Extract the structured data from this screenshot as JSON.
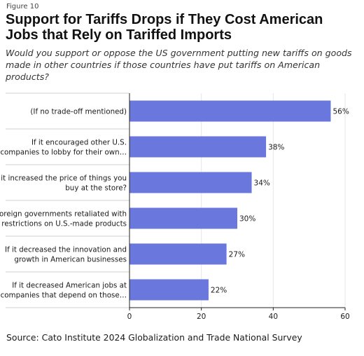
{
  "figure_label": "Figure 10",
  "title": "Support for Tariffs Drops if They Cost American Jobs that Rely on Tariffed Imports",
  "subtitle": "Would you support or oppose the US government putting new tariffs on goods made in other countries if those countries have put tariffs on American products?",
  "source": "Source: Cato Institute 2024 Globalization and Trade National Survey",
  "colors": {
    "bar": "#6a78de",
    "grid": "#e6e6e6",
    "axis": "#222222"
  },
  "chart_data": {
    "type": "bar",
    "orientation": "horizontal",
    "categories": [
      [
        "(If no trade-off mentioned)"
      ],
      [
        "If it encouraged other U.S.",
        "companies to lobby for their own…"
      ],
      [
        "If it increased the price of things you",
        "buy at the store?"
      ],
      [
        "If foreign governments retaliated with",
        "restrictions on U.S.-made products"
      ],
      [
        "If it decreased the innovation and",
        "growth in American businesses"
      ],
      [
        "If it decreased American jobs at",
        "companies that depend on those…"
      ]
    ],
    "values": [
      56,
      38,
      34,
      30,
      27,
      22
    ],
    "value_labels": [
      "56%",
      "38%",
      "34%",
      "30%",
      "27%",
      "22%"
    ],
    "xlim": [
      0,
      60
    ],
    "xticks": [
      0,
      20,
      40,
      60
    ],
    "xtick_labels": [
      "0",
      "20",
      "40",
      "60"
    ],
    "grid": true
  }
}
